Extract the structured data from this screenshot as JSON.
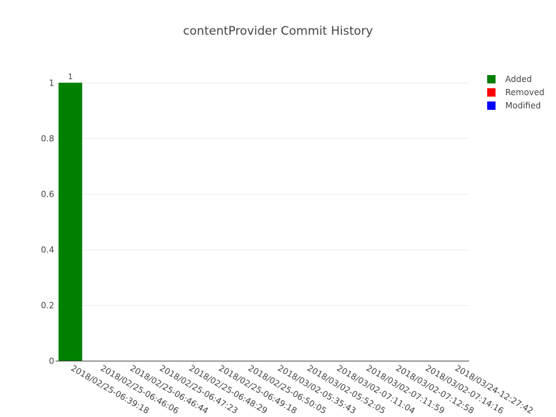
{
  "chart_data": {
    "type": "bar",
    "title": "contentProvider Commit History",
    "xlabel": "",
    "ylabel": "",
    "ylim": [
      0,
      1.05
    ],
    "yticks": [
      "0",
      "0.2",
      "0.4",
      "0.6",
      "0.8",
      "1"
    ],
    "ytick_values": [
      0,
      0.2,
      0.4,
      0.6,
      0.8,
      1
    ],
    "grid": true,
    "legend_position": "top-right",
    "categories": [
      "2018/02/25-06:39:18",
      "2018/02/25-06:46:06",
      "2018/02/25-06:46:44",
      "2018/02/25-06:47:23",
      "2018/02/25-06:48:29",
      "2018/02/25-06:49:18",
      "2018/02/25-06:50:05",
      "2018/03/02-05:35:43",
      "2018/03/02-05:52:05",
      "2018/03/02-07:11:04",
      "2018/03/02-07:11:59",
      "2018/03/02-07:12:58",
      "2018/03/02-07:14:16",
      "2018/03/24-12:27:42"
    ],
    "series": [
      {
        "name": "Added",
        "color": "#008000",
        "values": [
          1,
          0,
          0,
          0,
          0,
          0,
          0,
          0,
          0,
          0,
          0,
          0,
          0,
          0
        ],
        "labels": [
          "1",
          "",
          "",
          "",
          "",
          "",
          "",
          "",
          "",
          "",
          "",
          "",
          "",
          ""
        ]
      },
      {
        "name": "Removed",
        "color": "#ff0000",
        "values": [
          0,
          0,
          0,
          0,
          0,
          0,
          0,
          0,
          0,
          0,
          0,
          0,
          0,
          0
        ]
      },
      {
        "name": "Modified",
        "color": "#0000ff",
        "values": [
          0,
          0,
          0,
          0,
          0,
          0,
          0,
          0,
          0,
          0,
          0,
          0,
          0,
          0
        ]
      }
    ]
  }
}
